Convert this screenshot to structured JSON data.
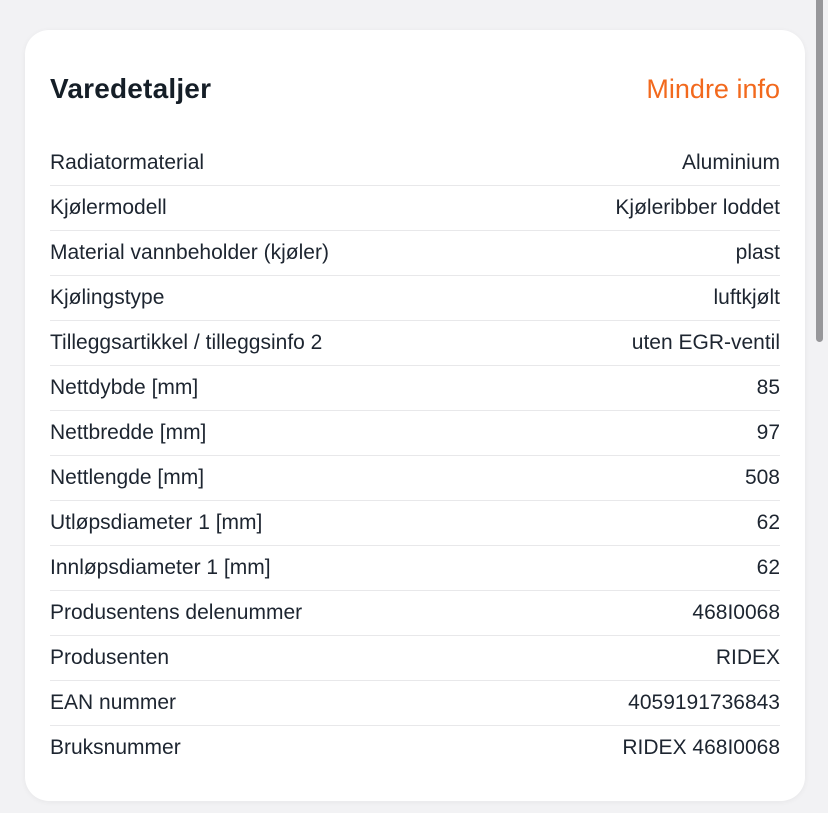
{
  "colors": {
    "page_background": "#f2f2f4",
    "card_background": "#ffffff",
    "accent_orange": "#f2691d",
    "text_dark": "#1d2530",
    "divider": "#e8e8ea",
    "scrollbar": "#97979a"
  },
  "card": {
    "title": "Varedetaljer",
    "toggle_label": "Mindre info",
    "rows": [
      {
        "label": "Radiatormaterial",
        "value": "Aluminium"
      },
      {
        "label": "Kjølermodell",
        "value": "Kjøleribber loddet"
      },
      {
        "label": "Material vannbeholder (kjøler)",
        "value": "plast"
      },
      {
        "label": "Kjølingstype",
        "value": "luftkjølt"
      },
      {
        "label": "Tilleggsartikkel / tilleggsinfo 2",
        "value": "uten EGR-ventil"
      },
      {
        "label": "Nettdybde [mm]",
        "value": "85"
      },
      {
        "label": "Nettbredde [mm]",
        "value": "97"
      },
      {
        "label": "Nettlengde [mm]",
        "value": "508"
      },
      {
        "label": "Utløpsdiameter 1 [mm]",
        "value": "62"
      },
      {
        "label": "Innløpsdiameter 1 [mm]",
        "value": "62"
      },
      {
        "label": "Produsentens delenummer",
        "value": "468I0068"
      },
      {
        "label": "Produsenten",
        "value": "RIDEX"
      },
      {
        "label": "EAN nummer",
        "value": "4059191736843"
      },
      {
        "label": "Bruksnummer",
        "value": "RIDEX 468I0068"
      }
    ]
  }
}
